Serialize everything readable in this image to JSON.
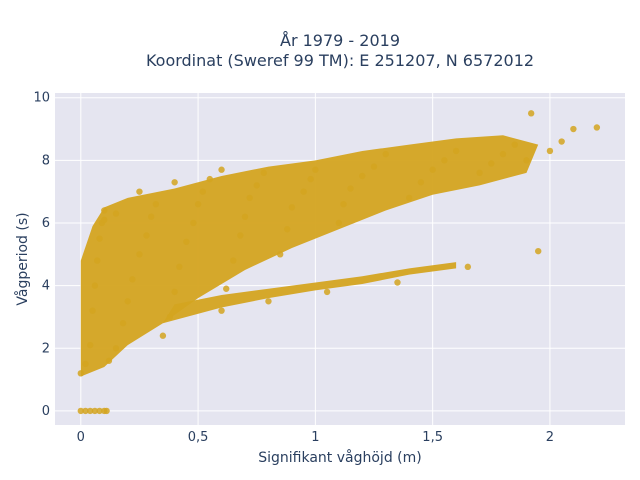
{
  "chart_data": {
    "type": "scatter",
    "title_line1": "År 1979 - 2019",
    "title_line2": "Koordinat (Sweref 99 TM): E 251207, N 6572012",
    "xlabel": "Signifikant våghöjd (m)",
    "ylabel": "Vågperiod (s)",
    "xlim": [
      -0.11,
      2.32
    ],
    "ylim": [
      -0.45,
      10.15
    ],
    "x_ticks": [
      0,
      0.5,
      1,
      1.5,
      2
    ],
    "x_tick_labels": [
      "0",
      "0,5",
      "1",
      "1,5",
      "2"
    ],
    "y_ticks": [
      0,
      2,
      4,
      6,
      8,
      10
    ],
    "y_tick_labels": [
      "0",
      "2",
      "4",
      "6",
      "8",
      "10"
    ],
    "grid": true,
    "marker_color": "#D4A420",
    "plot_background": "#E5E5F0",
    "points": [
      [
        0.0,
        0.0
      ],
      [
        0.02,
        0.0
      ],
      [
        0.04,
        0.0
      ],
      [
        0.06,
        0.0
      ],
      [
        0.08,
        0.0
      ],
      [
        0.1,
        0.0
      ],
      [
        0.11,
        0.0
      ],
      [
        0.0,
        1.2
      ],
      [
        0.02,
        1.5
      ],
      [
        0.04,
        2.1
      ],
      [
        0.05,
        3.2
      ],
      [
        0.06,
        4.0
      ],
      [
        0.07,
        4.8
      ],
      [
        0.08,
        5.5
      ],
      [
        0.09,
        6.0
      ],
      [
        0.1,
        6.4
      ],
      [
        0.12,
        1.6
      ],
      [
        0.15,
        2.0
      ],
      [
        0.18,
        2.8
      ],
      [
        0.2,
        3.5
      ],
      [
        0.22,
        4.2
      ],
      [
        0.25,
        5.0
      ],
      [
        0.28,
        5.6
      ],
      [
        0.3,
        6.2
      ],
      [
        0.32,
        6.6
      ],
      [
        0.35,
        2.4
      ],
      [
        0.38,
        3.0
      ],
      [
        0.4,
        3.8
      ],
      [
        0.42,
        4.6
      ],
      [
        0.45,
        5.4
      ],
      [
        0.48,
        6.0
      ],
      [
        0.5,
        6.6
      ],
      [
        0.52,
        7.0
      ],
      [
        0.55,
        7.4
      ],
      [
        0.6,
        3.2
      ],
      [
        0.62,
        3.9
      ],
      [
        0.65,
        4.8
      ],
      [
        0.68,
        5.6
      ],
      [
        0.7,
        6.2
      ],
      [
        0.72,
        6.8
      ],
      [
        0.75,
        7.2
      ],
      [
        0.78,
        7.6
      ],
      [
        0.8,
        3.5
      ],
      [
        0.85,
        5.0
      ],
      [
        0.88,
        5.8
      ],
      [
        0.9,
        6.5
      ],
      [
        0.95,
        7.0
      ],
      [
        0.98,
        7.4
      ],
      [
        1.0,
        7.7
      ],
      [
        1.05,
        3.8
      ],
      [
        1.1,
        6.0
      ],
      [
        1.12,
        6.6
      ],
      [
        1.15,
        7.1
      ],
      [
        1.2,
        7.5
      ],
      [
        1.25,
        7.8
      ],
      [
        1.3,
        8.2
      ],
      [
        1.35,
        4.1
      ],
      [
        1.4,
        6.8
      ],
      [
        1.45,
        7.3
      ],
      [
        1.5,
        7.7
      ],
      [
        1.55,
        8.0
      ],
      [
        1.6,
        8.3
      ],
      [
        1.65,
        4.6
      ],
      [
        1.7,
        7.6
      ],
      [
        1.75,
        7.9
      ],
      [
        1.8,
        8.2
      ],
      [
        1.85,
        8.5
      ],
      [
        1.9,
        8.0
      ],
      [
        1.95,
        5.1
      ],
      [
        2.0,
        8.3
      ],
      [
        2.05,
        8.6
      ],
      [
        2.1,
        9.0
      ],
      [
        2.2,
        9.05
      ],
      [
        1.92,
        9.5
      ],
      [
        0.1,
        6.1
      ],
      [
        0.15,
        6.3
      ],
      [
        0.25,
        7.0
      ],
      [
        0.4,
        7.3
      ],
      [
        0.6,
        7.7
      ]
    ]
  }
}
